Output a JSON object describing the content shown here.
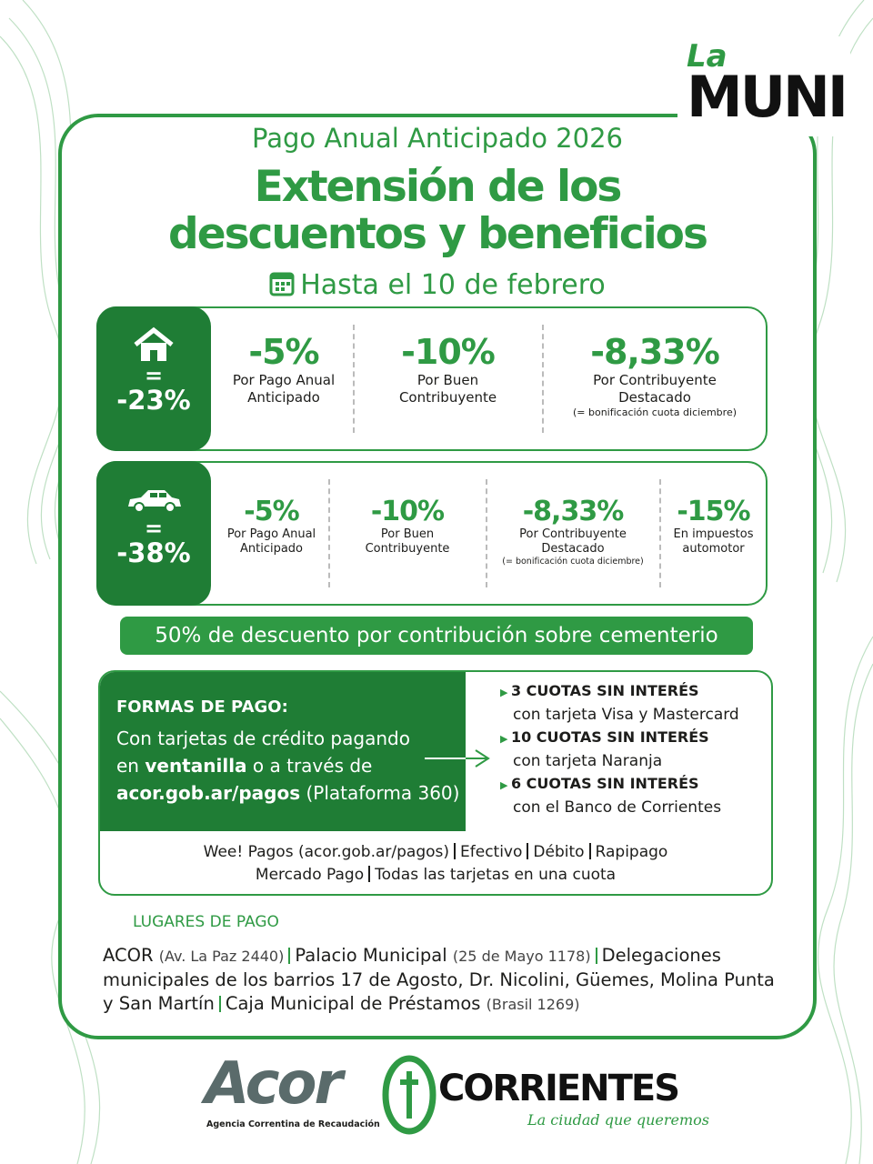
{
  "brand": {
    "la": "La",
    "muni": "MUNI"
  },
  "header": {
    "subtitle": "Pago Anual Anticipado 2026",
    "title_line1": "Extensión de los",
    "title_line2": "descuentos y beneficios",
    "date": "Hasta el 10 de febrero"
  },
  "property": {
    "equals": "=",
    "total": "-23%",
    "items": [
      {
        "value": "-5%",
        "label_line1": "Por Pago Anual",
        "label_line2": "Anticipado"
      },
      {
        "value": "-10%",
        "label_line1": "Por Buen",
        "label_line2": "Contribuyente"
      },
      {
        "value": "-8,33%",
        "label_line1": "Por Contribuyente",
        "label_line2": "Destacado",
        "note": "(= bonificación cuota diciembre)"
      }
    ]
  },
  "vehicle": {
    "equals": "=",
    "total": "-38%",
    "items": [
      {
        "value": "-5%",
        "label_line1": "Por Pago Anual",
        "label_line2": "Anticipado"
      },
      {
        "value": "-10%",
        "label_line1": "Por Buen",
        "label_line2": "Contribuyente"
      },
      {
        "value": "-8,33%",
        "label_line1": "Por Contribuyente",
        "label_line2": "Destacado",
        "note": "(= bonificación cuota diciembre)"
      },
      {
        "value": "-15%",
        "label_line1": "En impuestos",
        "label_line2": "automotor"
      }
    ]
  },
  "cemetery": "50% de descuento por contribución sobre cementerio",
  "payment": {
    "heading": "FORMAS DE PAGO:",
    "line1": "Con tarjetas de crédito pagando",
    "line2_a": "en",
    "line2_b": "ventanilla",
    "line2_c": "o a través de",
    "line3_a": "acor.gob.ar/pagos",
    "line3_b": "(Plataforma 360)",
    "options": [
      {
        "title": "3 CUOTAS SIN INTERÉS",
        "detail": "con tarjeta Visa y Mastercard"
      },
      {
        "title": "10 CUOTAS SIN INTERÉS",
        "detail": "con tarjeta Naranja"
      },
      {
        "title": "6 CUOTAS SIN INTERÉS",
        "detail": "con el Banco de Corrientes"
      }
    ],
    "other_line1": [
      "Wee! Pagos (acor.gob.ar/pagos)",
      "Efectivo",
      "Débito",
      "Rapipago"
    ],
    "other_line2": [
      "Mercado Pago",
      "Todas las tarjetas en una cuota"
    ]
  },
  "places": {
    "heading": "LUGARES DE PAGO",
    "items": [
      {
        "name": "ACOR",
        "address": "(Av. La Paz 2440)"
      },
      {
        "name": "Palacio Municipal",
        "address": "(25 de Mayo 1178)"
      },
      {
        "name": "Delegaciones municipales de los barrios 17 de Agosto, Dr. Nicolini, Güemes, Molina Punta y San Martín"
      },
      {
        "name": "Caja Municipal de Préstamos",
        "address": "(Brasil 1269)"
      }
    ]
  },
  "footer": {
    "acor": "Acor",
    "acor_name": "Agencia Correntina de Recaudación",
    "corrientes": "CORRIENTES",
    "slogan": "La ciudad que queremos"
  }
}
